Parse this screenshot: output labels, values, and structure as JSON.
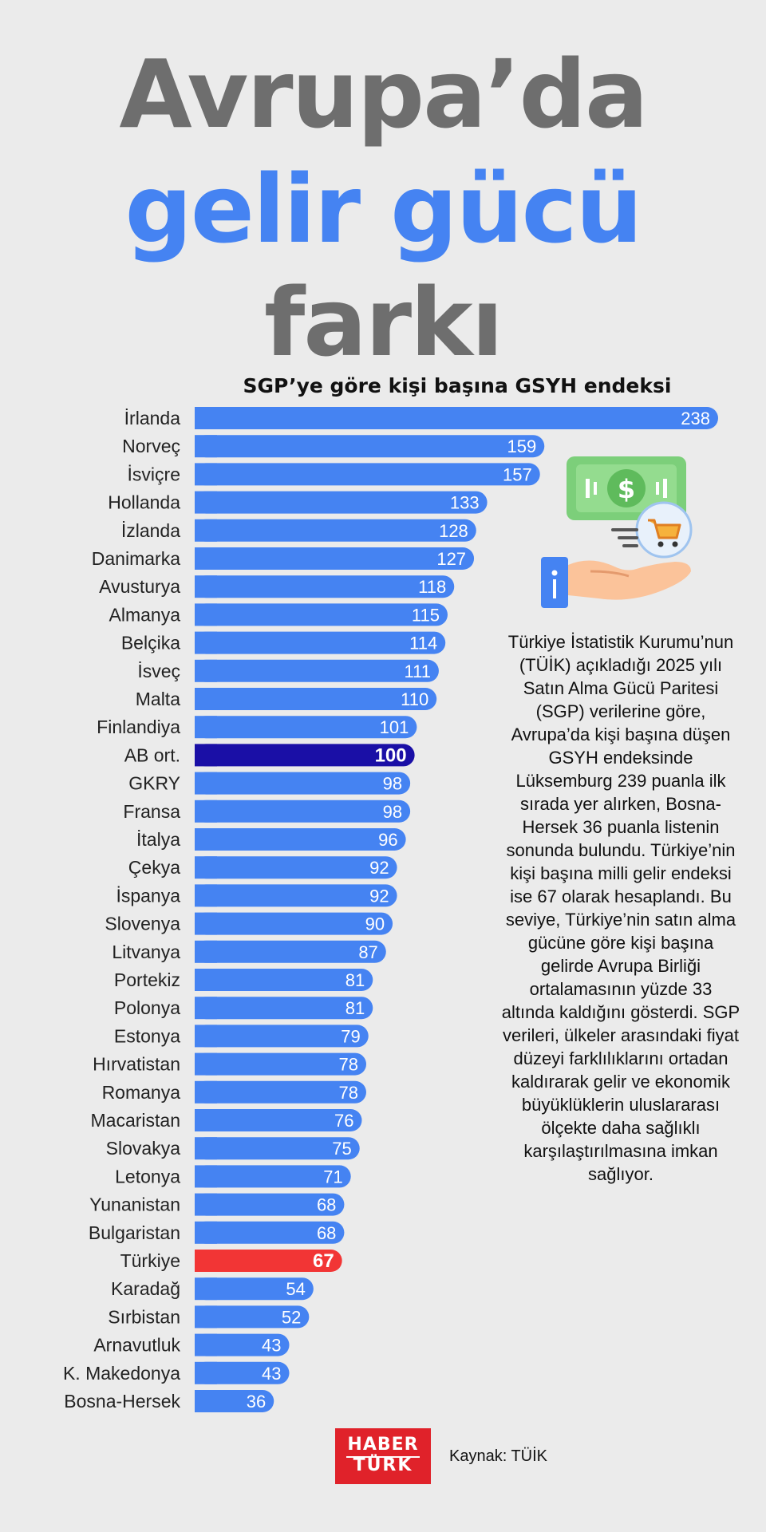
{
  "title": {
    "line1": "Avrupa’da",
    "line2": "gelir gücü",
    "line3": "farkı"
  },
  "chart_data": {
    "type": "bar",
    "orientation": "horizontal",
    "title": "SGP’ye göre kişi başına GSYH endeksi",
    "categories": [
      "İrlanda",
      "Norveç",
      "İsviçre",
      "Hollanda",
      "İzlanda",
      "Danimarka",
      "Avusturya",
      "Almanya",
      "Belçika",
      "İsveç",
      "Malta",
      "Finlandiya",
      "AB ort.",
      "GKRY",
      "Fransa",
      "İtalya",
      "Çekya",
      "İspanya",
      "Slovenya",
      "Litvanya",
      "Portekiz",
      "Polonya",
      "Estonya",
      "Hırvatistan",
      "Romanya",
      "Macaristan",
      "Slovakya",
      "Letonya",
      "Yunanistan",
      "Bulgaristan",
      "Türkiye",
      "Karadağ",
      "Sırbistan",
      "Arnavutluk",
      "K. Makedonya",
      "Bosna-Hersek"
    ],
    "values": [
      238,
      159,
      157,
      133,
      128,
      127,
      118,
      115,
      114,
      111,
      110,
      101,
      100,
      98,
      98,
      96,
      92,
      92,
      90,
      87,
      81,
      81,
      79,
      78,
      78,
      76,
      75,
      71,
      68,
      68,
      67,
      54,
      52,
      43,
      43,
      36
    ],
    "highlight": {
      "AB ort.": "#1a0fa6",
      "Türkiye": "#f23535"
    },
    "bar_color": "#4583f2",
    "grid": false,
    "legend": "none"
  },
  "description": "Türkiye İstatistik Kurumu’nun (TÜİK) açıkladığı 2025 yılı Satın Alma Gücü Paritesi (SGP) verilerine göre, Avrupa’da kişi başına düşen GSYH endeksinde Lüksemburg 239 puanla ilk sırada yer alırken, Bosna-Hersek 36 puanla listenin sonunda bulundu. Türkiye’nin kişi başına milli gelir endeksi ise 67 olarak hesaplandı. Bu seviye, Türkiye’nin satın alma gücüne göre kişi başına gelirde Avrupa Birliği ortalamasının yüzde 33 altında kaldığını gösterdi. SGP verileri, ülkeler arasındaki fiyat düzeyi farklılıklarını ortadan kaldırarak gelir ve ekonomik büyüklüklerin uluslararası ölçekte daha sağlıklı karşılaştırılmasına imkan sağlıyor.",
  "logo": {
    "line1": "HABER",
    "line2": "TÜRK"
  },
  "source": "Kaynak: TÜİK",
  "illustration_icon": "money-cart-hand-icon"
}
